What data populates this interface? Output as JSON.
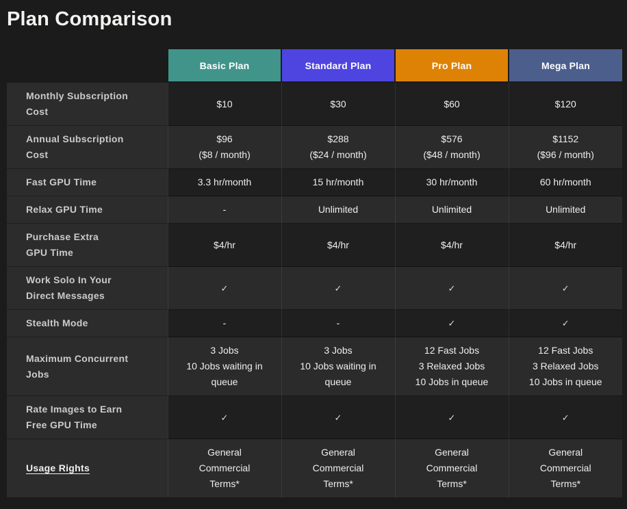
{
  "page": {
    "title": "Plan Comparison"
  },
  "colors": {
    "page_background": "#1b1b1b",
    "label_column_background": "#2c2c2c",
    "row_dark_background": "#1f1f1f",
    "row_light_background": "#2b2b2b",
    "label_text": "#cbcbcb",
    "value_text": "#eeeeee",
    "header_text": "#ffffff"
  },
  "table": {
    "plans": [
      {
        "name": "Basic Plan",
        "color": "#41948a"
      },
      {
        "name": "Standard Plan",
        "color": "#4e44e0"
      },
      {
        "name": "Pro Plan",
        "color": "#de8206"
      },
      {
        "name": "Mega Plan",
        "color": "#4b5e8c"
      }
    ],
    "check_icon": "✓",
    "rows": [
      {
        "label": "Monthly Subscription\nCost",
        "values": [
          "$10",
          "$30",
          "$60",
          "$120"
        ]
      },
      {
        "label": "Annual Subscription\nCost",
        "values": [
          "$96\n($8 / month)",
          "$288\n($24 / month)",
          "$576\n($48 / month)",
          "$1152\n($96 / month)"
        ]
      },
      {
        "label": "Fast GPU Time",
        "values": [
          "3.3 hr/month",
          "15 hr/month",
          "30 hr/month",
          "60 hr/month"
        ]
      },
      {
        "label": "Relax GPU Time",
        "values": [
          "-",
          "Unlimited",
          "Unlimited",
          "Unlimited"
        ]
      },
      {
        "label": "Purchase Extra\nGPU Time",
        "values": [
          "$4/hr",
          "$4/hr",
          "$4/hr",
          "$4/hr"
        ]
      },
      {
        "label": "Work Solo In Your\nDirect Messages",
        "values": [
          "✓",
          "✓",
          "✓",
          "✓"
        ]
      },
      {
        "label": "Stealth Mode",
        "values": [
          "-",
          "-",
          "✓",
          "✓"
        ]
      },
      {
        "label": "Maximum Concurrent\nJobs",
        "values": [
          "3 Jobs\n10 Jobs waiting in\nqueue",
          "3 Jobs\n10 Jobs waiting in\nqueue",
          "12 Fast Jobs\n3 Relaxed Jobs\n10 Jobs in queue",
          "12 Fast Jobs\n3 Relaxed Jobs\n10 Jobs in queue"
        ]
      },
      {
        "label": "Rate Images to Earn\nFree GPU Time",
        "values": [
          "✓",
          "✓",
          "✓",
          "✓"
        ]
      },
      {
        "label": "Usage Rights",
        "link": true,
        "values": [
          "General\nCommercial\nTerms*",
          "General\nCommercial\nTerms*",
          "General\nCommercial\nTerms*",
          "General\nCommercial\nTerms*"
        ]
      }
    ]
  }
}
